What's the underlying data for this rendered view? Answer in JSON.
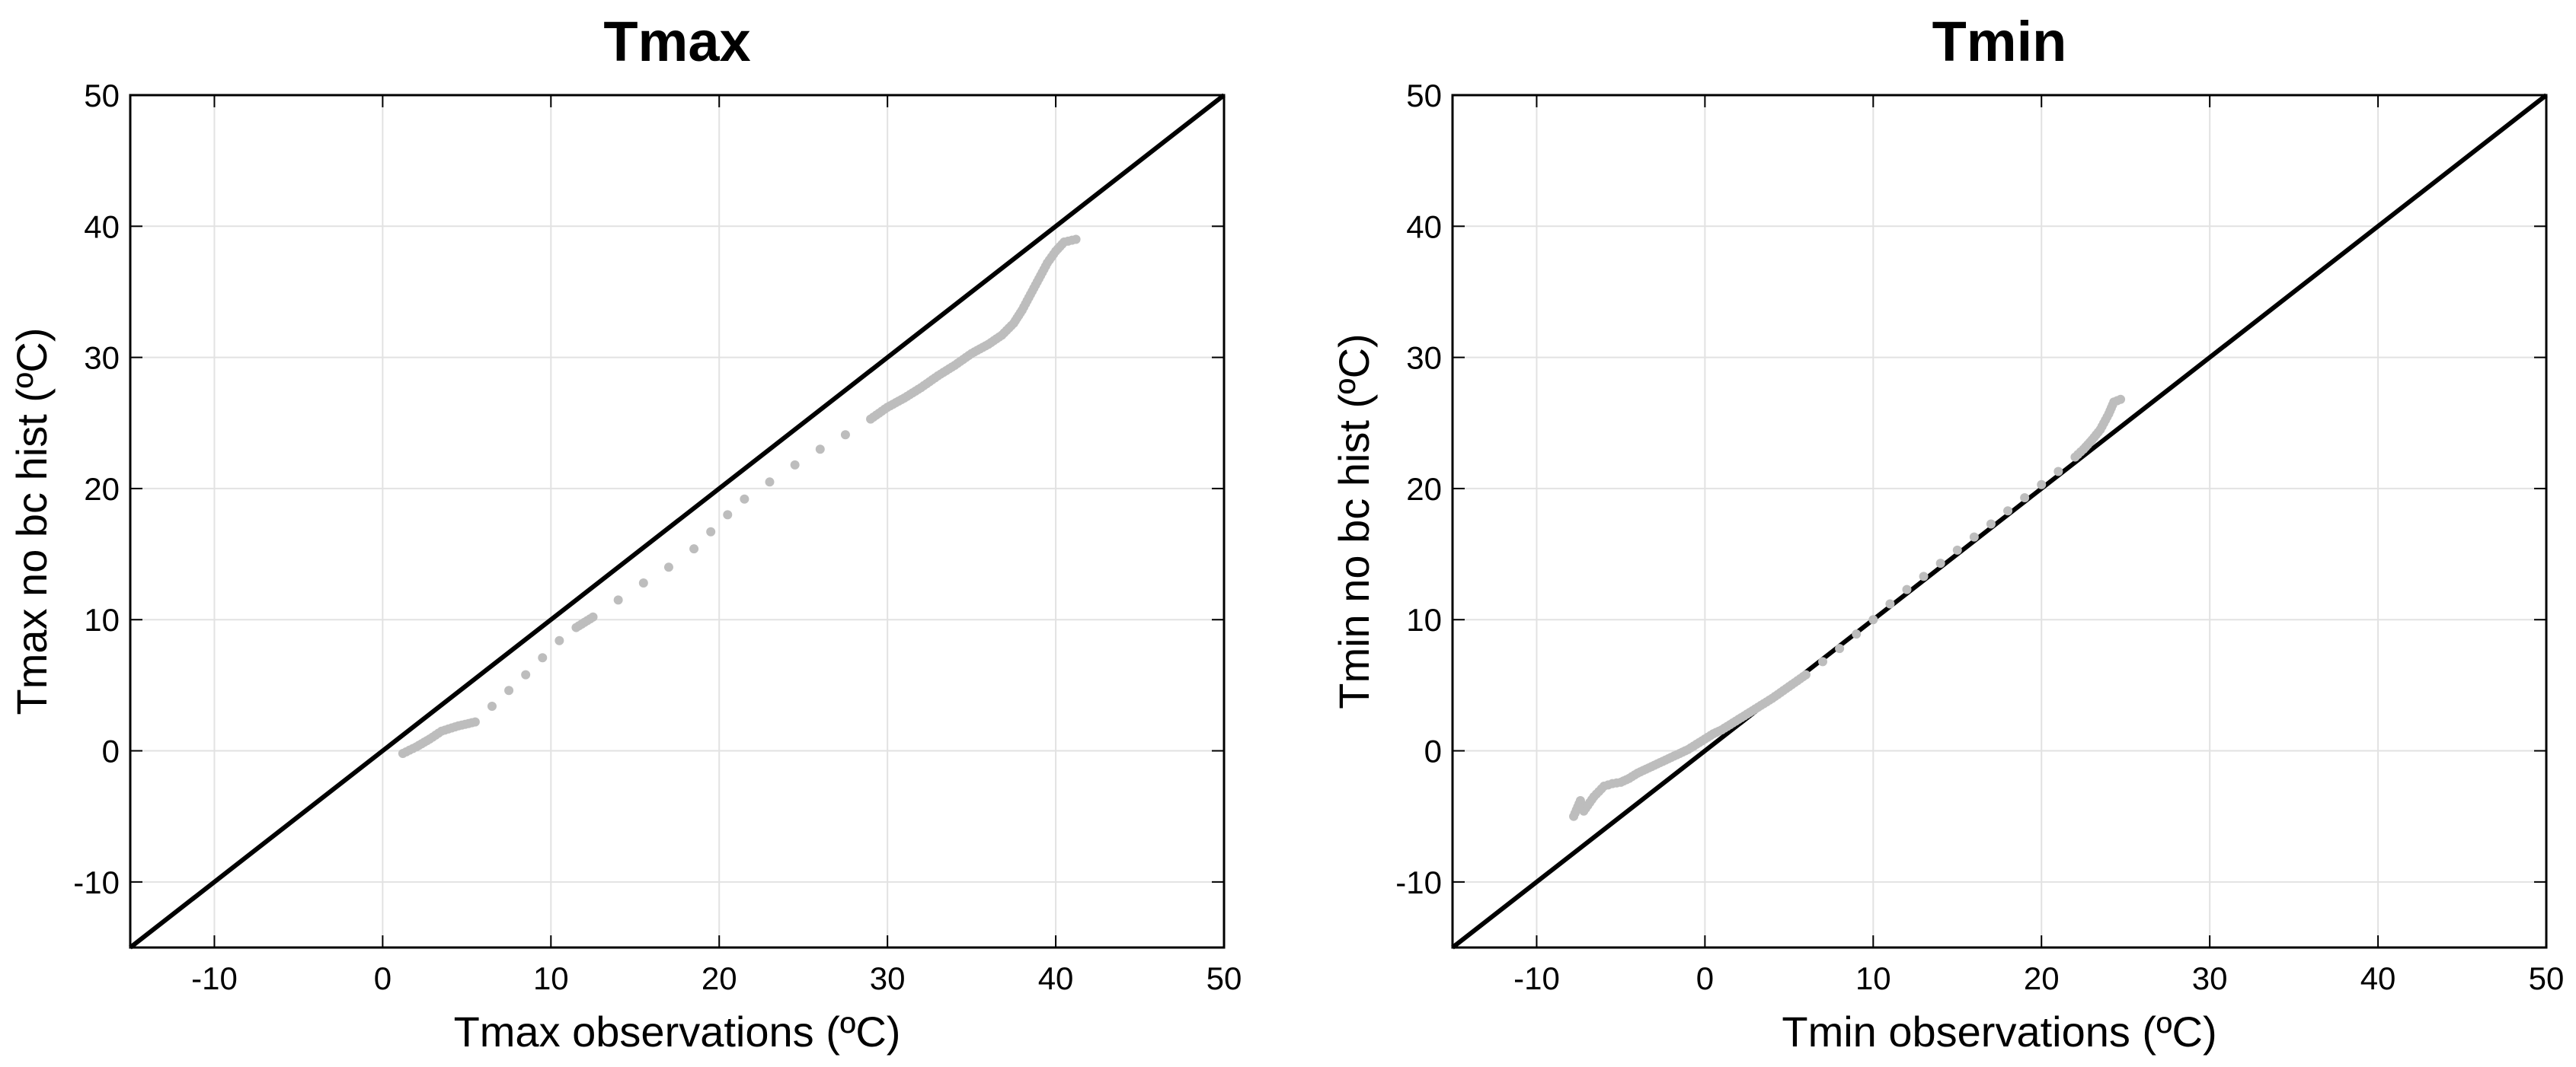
{
  "chart_data": [
    {
      "type": "scatter",
      "title": "Tmax",
      "xlabel": "Tmax observations (ºC)",
      "ylabel": "Tmax no bc hist (ºC)",
      "xlim": [
        -15,
        50
      ],
      "ylim": [
        -15,
        50
      ],
      "xticks": [
        -10,
        0,
        10,
        20,
        30,
        40,
        50
      ],
      "yticks": [
        -10,
        0,
        10,
        20,
        30,
        40,
        50
      ],
      "xtick_labels": [
        "-10",
        "0",
        "10",
        "20",
        "30",
        "40",
        "50"
      ],
      "ytick_labels": [
        "-10",
        "0",
        "10",
        "20",
        "30",
        "40",
        "50"
      ],
      "grid": true,
      "reference_line": {
        "type": "1:1",
        "color": "#000000"
      },
      "series": [
        {
          "color": "#bdbdbd",
          "x": [
            1.2,
            2.0,
            2.8,
            3.5,
            4.5,
            5.5,
            6.5,
            7.5,
            8.5,
            9.5,
            10.5,
            11.5,
            12.5,
            14.0,
            15.5,
            17.0,
            18.5,
            19.5,
            20.5,
            21.5,
            23.0,
            24.5,
            26.0,
            27.5,
            29.0,
            30.0,
            31.0,
            32.0,
            33.0,
            34.0,
            35.0,
            36.0,
            36.8,
            37.5,
            38.0,
            38.5,
            39.0,
            39.5,
            40.0,
            40.5,
            41.2
          ],
          "y": [
            -0.2,
            0.3,
            0.9,
            1.5,
            1.9,
            2.2,
            3.4,
            4.6,
            5.8,
            7.1,
            8.4,
            9.4,
            10.2,
            11.5,
            12.8,
            14.0,
            15.4,
            16.7,
            18.0,
            19.2,
            20.5,
            21.8,
            23.0,
            24.1,
            25.3,
            26.2,
            26.9,
            27.7,
            28.6,
            29.4,
            30.3,
            31.0,
            31.7,
            32.6,
            33.6,
            34.8,
            36.0,
            37.2,
            38.1,
            38.8,
            39.0
          ]
        }
      ]
    },
    {
      "type": "scatter",
      "title": "Tmin",
      "xlabel": "Tmin observations (ºC)",
      "ylabel": "Tmin no bc hist (ºC)",
      "xlim": [
        -15,
        50
      ],
      "ylim": [
        -15,
        50
      ],
      "xticks": [
        -10,
        0,
        10,
        20,
        30,
        40,
        50
      ],
      "yticks": [
        -10,
        0,
        10,
        20,
        30,
        40,
        50
      ],
      "xtick_labels": [
        "-10",
        "0",
        "10",
        "20",
        "30",
        "40",
        "50"
      ],
      "ytick_labels": [
        "-10",
        "0",
        "10",
        "20",
        "30",
        "40",
        "50"
      ],
      "grid": true,
      "reference_line": {
        "type": "1:1",
        "color": "#000000"
      },
      "series": [
        {
          "color": "#bdbdbd",
          "x": [
            -7.8,
            -7.4,
            -7.2,
            -6.6,
            -6.0,
            -5.5,
            -5.0,
            -4.5,
            -4.0,
            -3.5,
            -3.0,
            -2.5,
            -2.0,
            -1.5,
            -1.0,
            -0.5,
            0.0,
            0.5,
            1.0,
            1.5,
            2.0,
            2.5,
            3.0,
            3.5,
            4.0,
            5.0,
            6.0,
            7.0,
            8.0,
            9.0,
            10.0,
            11.0,
            12.0,
            13.0,
            14.0,
            15.0,
            16.0,
            17.0,
            18.0,
            19.0,
            20.0,
            21.0,
            22.0,
            22.5,
            23.0,
            23.5,
            24.0,
            24.3,
            24.7
          ],
          "y": [
            -5.0,
            -3.8,
            -4.6,
            -3.5,
            -2.7,
            -2.5,
            -2.4,
            -2.1,
            -1.7,
            -1.4,
            -1.1,
            -0.8,
            -0.5,
            -0.2,
            0.1,
            0.5,
            0.9,
            1.3,
            1.6,
            2.0,
            2.4,
            2.8,
            3.2,
            3.6,
            4.0,
            4.9,
            5.8,
            6.8,
            7.8,
            8.9,
            10.0,
            11.2,
            12.3,
            13.3,
            14.3,
            15.3,
            16.3,
            17.3,
            18.3,
            19.3,
            20.3,
            21.3,
            22.4,
            23.0,
            23.7,
            24.5,
            25.7,
            26.6,
            26.8
          ]
        }
      ]
    }
  ]
}
